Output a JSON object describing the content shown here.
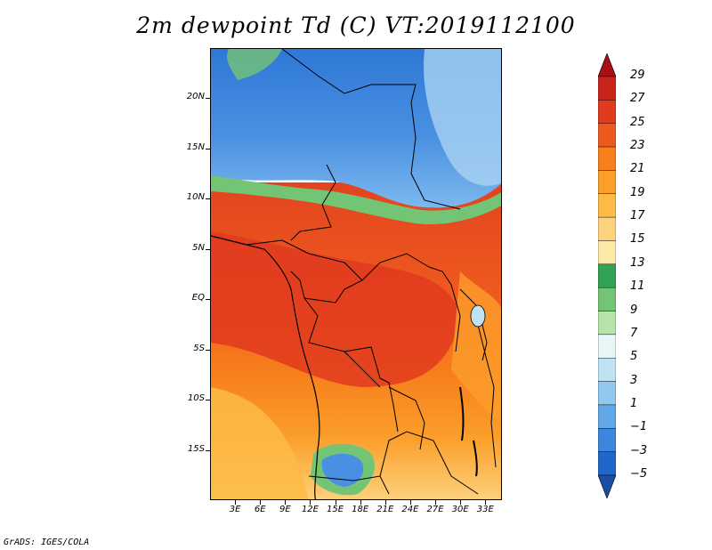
{
  "title": "2m dewpoint Td (C) VT:2019112100",
  "credit": "GrADS: IGES/COLA",
  "map": {
    "lon_range": [
      0,
      35
    ],
    "lat_range": [
      -20,
      25
    ],
    "lat_labels": [
      {
        "lat": 20,
        "label": "20N"
      },
      {
        "lat": 15,
        "label": "15N"
      },
      {
        "lat": 10,
        "label": "10N"
      },
      {
        "lat": 5,
        "label": "5N"
      },
      {
        "lat": 0,
        "label": "EQ"
      },
      {
        "lat": -5,
        "label": "5S"
      },
      {
        "lat": -10,
        "label": "10S"
      },
      {
        "lat": -15,
        "label": "15S"
      }
    ],
    "lon_labels": [
      {
        "lon": 3,
        "label": "3E"
      },
      {
        "lon": 6,
        "label": "6E"
      },
      {
        "lon": 9,
        "label": "9E"
      },
      {
        "lon": 12,
        "label": "12E"
      },
      {
        "lon": 15,
        "label": "15E"
      },
      {
        "lon": 18,
        "label": "18E"
      },
      {
        "lon": 21,
        "label": "21E"
      },
      {
        "lon": 24,
        "label": "24E"
      },
      {
        "lon": 27,
        "label": "27E"
      },
      {
        "lon": 30,
        "label": "30E"
      },
      {
        "lon": 33,
        "label": "33E"
      }
    ]
  },
  "colorbar": {
    "levels": [
      "29",
      "27",
      "25",
      "23",
      "21",
      "19",
      "17",
      "15",
      "13",
      "11",
      "9",
      "7",
      "5",
      "3",
      "1",
      "−1",
      "−3",
      "−5"
    ],
    "colors": [
      "#a50f15",
      "#c8241c",
      "#e03a1f",
      "#ee5a1e",
      "#f77f1c",
      "#fb9e2a",
      "#fdbb45",
      "#fdd27c",
      "#fee9a8",
      "#31a354",
      "#74c476",
      "#b7e4a8",
      "#e8f6f8",
      "#bfe3f5",
      "#91c8ef",
      "#62a8e8",
      "#3d86dd",
      "#2166c9",
      "#1a4fa8"
    ]
  }
}
